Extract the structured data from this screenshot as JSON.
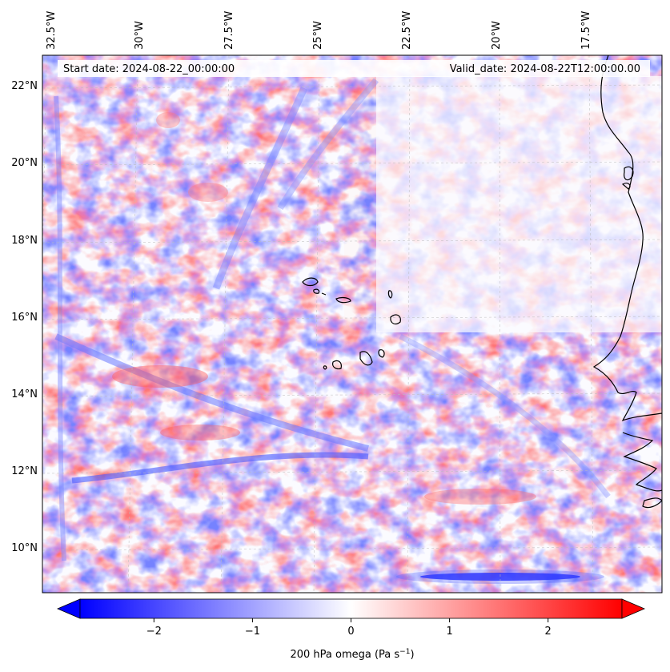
{
  "map": {
    "start_date_text": "Start date: 2024-08-22_00:00:00",
    "valid_date_text": "Valid_date: 2024-08-22T12:00:00.00",
    "lon_labels": [
      "32.5°W",
      "30°W",
      "27.5°W",
      "25°W",
      "22.5°W",
      "20°W",
      "17.5°W"
    ],
    "lat_labels": [
      "22°N",
      "20°N",
      "18°N",
      "16°N",
      "14°N",
      "12°N",
      "10°N"
    ],
    "gridlines": true,
    "colormap": {
      "negative": "#0000ff",
      "zero": "#ffffff",
      "positive": "#ff0000"
    }
  },
  "colorbar": {
    "min": -2.75,
    "max": 2.75,
    "ticks": [
      -2,
      -1,
      0,
      1,
      2
    ],
    "tick_labels": [
      "−2",
      "−1",
      "0",
      "1",
      "2"
    ],
    "label_main": "200 hPa omega (Pa s",
    "label_exp": "−1",
    "label_close": ")",
    "extend": "both"
  }
}
